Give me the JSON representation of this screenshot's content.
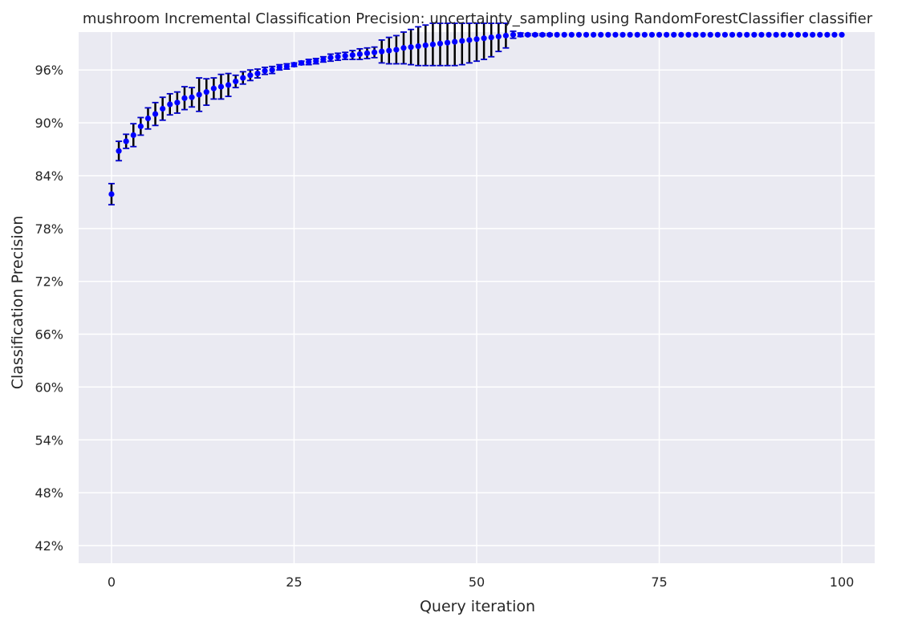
{
  "chart_data": {
    "type": "scatter",
    "title": "mushroom Incremental Classification Precision: uncertainty_sampling using RandomForestClassifier classifier",
    "xlabel": "Query iteration",
    "ylabel": "Classification Precision",
    "xlim": [
      -4.5,
      104.5
    ],
    "ylim": [
      40,
      100.3
    ],
    "x_ticks": [
      0,
      25,
      50,
      75,
      100
    ],
    "x_tick_labels": [
      "0",
      "25",
      "50",
      "75",
      "100"
    ],
    "y_ticks": [
      42,
      48,
      54,
      60,
      66,
      72,
      78,
      84,
      90,
      96
    ],
    "y_tick_labels": [
      "42%",
      "48%",
      "54%",
      "60%",
      "66%",
      "72%",
      "78%",
      "84%",
      "90%",
      "96%"
    ],
    "grid": true,
    "legend": "none",
    "colors": {
      "background": "#eaeaf2",
      "grid": "#ffffff",
      "marker": "#0000ff",
      "errorbar": "#000000",
      "errorcap": "#0000cc"
    },
    "series": [
      {
        "x": [
          0,
          1,
          2,
          3,
          4,
          5,
          6,
          7,
          8,
          9,
          10,
          11,
          12,
          13,
          14,
          15,
          16,
          17,
          18,
          19,
          20,
          21,
          22,
          23,
          24,
          25,
          26,
          27,
          28,
          29,
          30,
          31,
          32,
          33,
          34,
          35,
          36,
          37,
          38,
          39,
          40,
          41,
          42,
          43,
          44,
          45,
          46,
          47,
          48,
          49,
          50,
          51,
          52,
          53,
          54,
          55,
          56,
          57,
          58,
          59,
          60,
          61,
          62,
          63,
          64,
          65,
          66,
          67,
          68,
          69,
          70,
          71,
          72,
          73,
          74,
          75,
          76,
          77,
          78,
          79,
          80,
          81,
          82,
          83,
          84,
          85,
          86,
          87,
          88,
          89,
          90,
          91,
          92,
          93,
          94,
          95,
          96,
          97,
          98,
          99,
          100
        ],
        "y": [
          81.9,
          86.8,
          87.9,
          88.6,
          89.6,
          90.5,
          91.0,
          91.6,
          92.1,
          92.3,
          92.8,
          92.9,
          93.2,
          93.5,
          93.9,
          94.1,
          94.3,
          94.7,
          95.1,
          95.4,
          95.6,
          95.9,
          96.0,
          96.3,
          96.4,
          96.6,
          96.8,
          96.9,
          97.0,
          97.2,
          97.4,
          97.5,
          97.6,
          97.7,
          97.8,
          97.9,
          98.0,
          98.1,
          98.2,
          98.3,
          98.5,
          98.6,
          98.7,
          98.8,
          98.9,
          99.0,
          99.1,
          99.2,
          99.3,
          99.4,
          99.5,
          99.6,
          99.7,
          99.8,
          99.9,
          100,
          100,
          100,
          100,
          100,
          100,
          100,
          100,
          100,
          100,
          100,
          100,
          100,
          100,
          100,
          100,
          100,
          100,
          100,
          100,
          100,
          100,
          100,
          100,
          100,
          100,
          100,
          100,
          100,
          100,
          100,
          100,
          100,
          100,
          100,
          100,
          100,
          100,
          100,
          100,
          100,
          100,
          100,
          100,
          100,
          100
        ],
        "err": [
          1.2,
          1.1,
          0.8,
          1.3,
          1.0,
          1.2,
          1.3,
          1.3,
          1.2,
          1.2,
          1.3,
          1.1,
          1.9,
          1.5,
          1.2,
          1.4,
          1.3,
          0.7,
          0.7,
          0.6,
          0.5,
          0.4,
          0.4,
          0.3,
          0.3,
          0.2,
          0.2,
          0.3,
          0.3,
          0.3,
          0.4,
          0.4,
          0.4,
          0.5,
          0.6,
          0.6,
          0.6,
          1.3,
          1.5,
          1.6,
          1.8,
          2.0,
          2.2,
          2.3,
          2.4,
          2.5,
          2.6,
          2.7,
          2.7,
          2.6,
          2.5,
          2.4,
          2.2,
          1.7,
          1.4,
          0.4,
          0.2,
          0.1,
          0.1,
          0.1,
          0.1,
          0,
          0,
          0,
          0,
          0,
          0,
          0,
          0,
          0,
          0,
          0,
          0,
          0,
          0,
          0,
          0,
          0,
          0,
          0,
          0,
          0,
          0,
          0,
          0,
          0,
          0,
          0,
          0,
          0,
          0,
          0,
          0,
          0,
          0,
          0,
          0,
          0,
          0,
          0,
          0
        ]
      }
    ]
  }
}
